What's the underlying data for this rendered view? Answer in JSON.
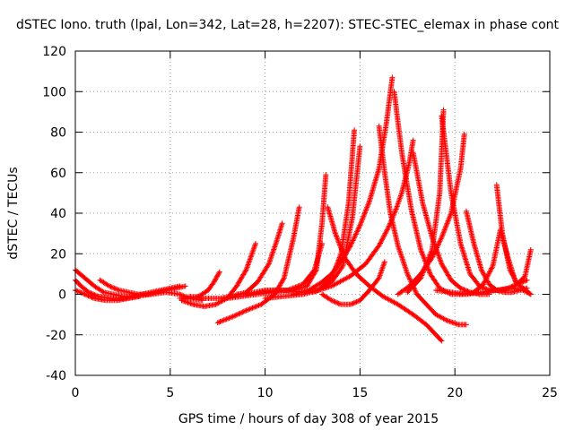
{
  "chart_data": {
    "type": "scatter",
    "title": "dSTEC Iono. truth (lpal, Lon=342, Lat=28, h=2207): STEC-STEC_elemax in phase cont",
    "xlabel": "GPS time / hours of day 308 of year 2015",
    "ylabel": "dSTEC  / TECUs",
    "xlim": [
      0,
      25
    ],
    "ylim": [
      -40,
      120
    ],
    "xticks": [
      0,
      5,
      10,
      15,
      20,
      25
    ],
    "yticks": [
      -40,
      -20,
      0,
      20,
      40,
      60,
      80,
      100,
      120
    ],
    "grid": true,
    "marker": "+",
    "color": "#ff0000",
    "series": [
      {
        "x": [
          0.0,
          0.5,
          1.0,
          1.5,
          2.0,
          2.5,
          3.0,
          3.5,
          4.0,
          4.5,
          5.0,
          5.5
        ],
        "y": [
          12,
          8,
          4,
          1,
          0,
          -1,
          -1,
          0,
          1,
          2,
          3,
          4
        ]
      },
      {
        "x": [
          0.0,
          0.3,
          0.7,
          1.2,
          1.8,
          2.5,
          3.2,
          4.0,
          4.8,
          5.5,
          6.0,
          6.7
        ],
        "y": [
          7,
          4,
          1,
          -1,
          -2,
          -2,
          -1,
          0,
          1,
          0,
          -2,
          -3
        ]
      },
      {
        "x": [
          0.0,
          0.5,
          1.0,
          1.6,
          2.2,
          2.8,
          3.4
        ],
        "y": [
          2,
          0,
          -2,
          -3,
          -3,
          -2,
          -1
        ]
      },
      {
        "x": [
          1.3,
          1.8,
          2.3,
          2.8,
          3.3,
          3.8,
          4.3,
          4.8,
          5.3,
          5.8
        ],
        "y": [
          7,
          4,
          2,
          1,
          0,
          0,
          1,
          2,
          3,
          4
        ]
      },
      {
        "x": [
          5.5,
          6.0,
          6.5,
          7.0,
          7.3,
          7.6
        ],
        "y": [
          -2,
          -2,
          -1,
          2,
          6,
          11
        ]
      },
      {
        "x": [
          5.6,
          6.2,
          6.8,
          7.4,
          8.0,
          8.5,
          9.0,
          9.5
        ],
        "y": [
          -3,
          -5,
          -6,
          -5,
          -2,
          4,
          12,
          25
        ]
      },
      {
        "x": [
          6.0,
          6.8,
          7.6,
          8.3,
          9.0,
          9.6,
          10.2,
          10.6,
          10.9
        ],
        "y": [
          -1,
          -2,
          -2,
          -1,
          1,
          6,
          15,
          26,
          35
        ]
      },
      {
        "x": [
          7.5,
          8.3,
          9.0,
          9.8,
          10.5,
          11.0,
          11.5,
          11.8
        ],
        "y": [
          -14,
          -11,
          -8,
          -5,
          0,
          8,
          28,
          43
        ]
      },
      {
        "x": [
          8.0,
          8.8,
          9.6,
          10.4,
          11.2,
          12.0,
          12.6,
          13.0
        ],
        "y": [
          -2,
          -1,
          0,
          1,
          2,
          5,
          12,
          25
        ]
      },
      {
        "x": [
          8.5,
          9.5,
          10.5,
          11.5,
          12.2,
          12.7,
          13.0,
          13.2
        ],
        "y": [
          0,
          1,
          2,
          2,
          4,
          12,
          35,
          59
        ]
      },
      {
        "x": [
          9.0,
          10.0,
          11.0,
          12.0,
          12.8,
          13.5,
          14.0,
          14.4,
          14.7
        ],
        "y": [
          0,
          2,
          2,
          1,
          2,
          8,
          20,
          45,
          81
        ]
      },
      {
        "x": [
          10.0,
          11.0,
          12.0,
          12.8,
          13.5,
          14.1,
          14.6,
          15.0
        ],
        "y": [
          -2,
          -1,
          0,
          2,
          6,
          14,
          38,
          73
        ]
      },
      {
        "x": [
          11.5,
          12.3,
          13.0,
          13.5,
          14.0,
          14.5,
          15.0,
          15.5,
          16.0,
          16.4,
          16.7
        ],
        "y": [
          0,
          2,
          6,
          10,
          16,
          24,
          34,
          46,
          62,
          85,
          107
        ]
      },
      {
        "x": [
          12.5,
          13.5,
          14.5,
          15.3,
          16.0,
          16.5,
          16.9,
          17.2,
          17.6,
          17.8
        ],
        "y": [
          1,
          4,
          9,
          15,
          24,
          33,
          42,
          50,
          65,
          76
        ]
      },
      {
        "x": [
          13.3,
          13.7,
          14.2,
          14.8,
          15.5,
          16.2,
          17.0,
          17.8,
          18.5,
          19.0,
          19.3
        ],
        "y": [
          43,
          30,
          18,
          10,
          4,
          -1,
          -5,
          -10,
          -15,
          -20,
          -23
        ]
      },
      {
        "x": [
          16.0,
          16.3,
          16.6,
          17.0,
          17.5,
          18.0,
          18.5,
          19.0,
          19.6,
          20.2,
          20.6
        ],
        "y": [
          83,
          60,
          40,
          24,
          10,
          0,
          -5,
          -10,
          -13,
          -15,
          -15
        ]
      },
      {
        "x": [
          16.8,
          17.2,
          17.7,
          18.2,
          18.7,
          19.2,
          19.8,
          20.4,
          21.0
        ],
        "y": [
          100,
          70,
          42,
          22,
          10,
          3,
          0,
          0,
          1
        ]
      },
      {
        "x": [
          17.0,
          17.6,
          18.2,
          18.8,
          19.3,
          19.8,
          20.3,
          20.5
        ],
        "y": [
          0,
          4,
          10,
          18,
          28,
          40,
          62,
          79
        ]
      },
      {
        "x": [
          17.8,
          18.3,
          18.8,
          19.3,
          19.8,
          20.3,
          20.8,
          21.3,
          21.8
        ],
        "y": [
          70,
          45,
          28,
          15,
          7,
          3,
          1,
          0,
          0
        ]
      },
      {
        "x": [
          17.5,
          18.2,
          18.8,
          19.2,
          19.4
        ],
        "y": [
          1,
          8,
          22,
          50,
          91
        ]
      },
      {
        "x": [
          19.3,
          19.8,
          20.3,
          20.8,
          21.3,
          21.8,
          22.3,
          22.8,
          23.3,
          23.8
        ],
        "y": [
          88,
          50,
          25,
          10,
          4,
          2,
          2,
          3,
          5,
          7
        ]
      },
      {
        "x": [
          20.6,
          21.0,
          21.4,
          21.8,
          22.2,
          22.6,
          23.0,
          23.4,
          23.8
        ],
        "y": [
          41,
          25,
          12,
          5,
          2,
          1,
          1,
          2,
          3
        ]
      },
      {
        "x": [
          21.0,
          21.5,
          22.0,
          22.4,
          22.8,
          23.2,
          23.6,
          24.0
        ],
        "y": [
          1,
          5,
          14,
          32,
          18,
          6,
          3,
          0
        ]
      },
      {
        "x": [
          22.2,
          22.5,
          22.9,
          23.3,
          23.7,
          24.0
        ],
        "y": [
          54,
          30,
          12,
          5,
          9,
          22
        ]
      },
      {
        "x": [
          19.0,
          19.8,
          20.6,
          21.4,
          22.2,
          23.0,
          23.6,
          24.0
        ],
        "y": [
          2,
          1,
          0,
          1,
          2,
          3,
          2,
          0
        ]
      },
      {
        "x": [
          13.0,
          13.5,
          14.0,
          14.5,
          15.0,
          15.5,
          16.0,
          16.3
        ],
        "y": [
          0,
          -3,
          -5,
          -5,
          -3,
          2,
          8,
          16
        ]
      }
    ]
  }
}
